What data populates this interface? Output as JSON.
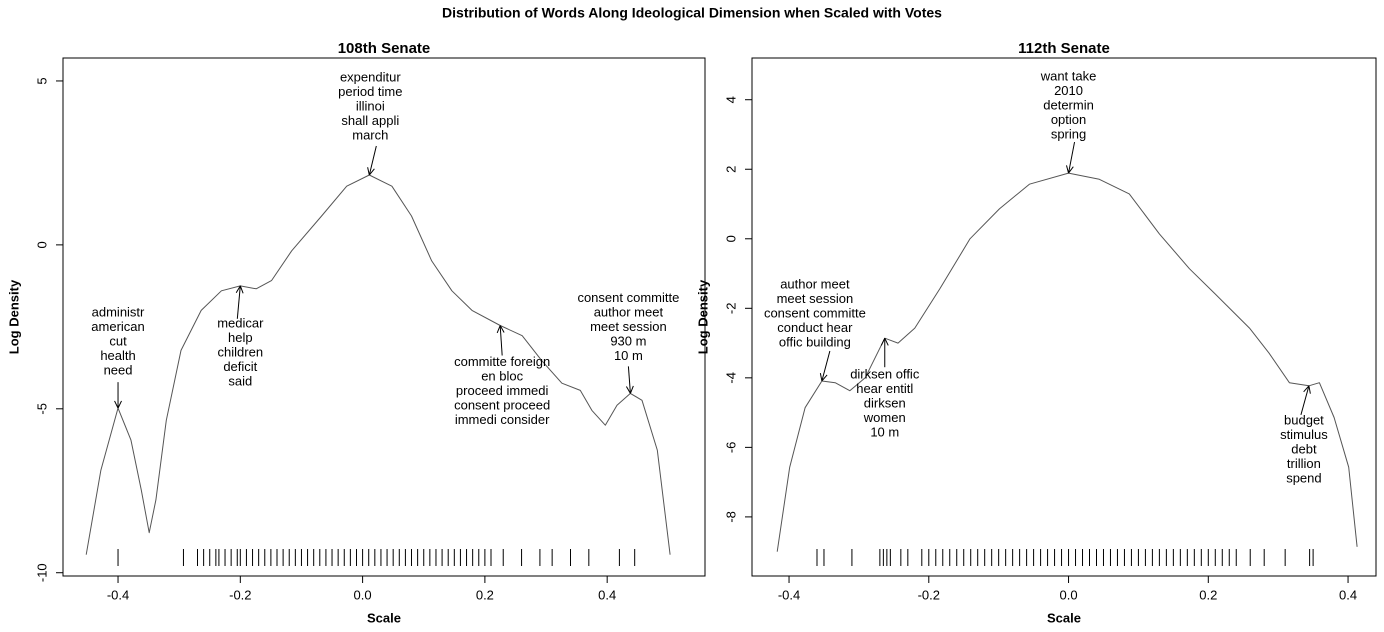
{
  "title": "Distribution of Words Along Ideological Dimension when Scaled with Votes",
  "chart_data": [
    {
      "type": "line",
      "title": "108th Senate",
      "xlabel": "Scale",
      "ylabel": "Log Density",
      "color": "#555555",
      "x": [
        -0.452,
        -0.428,
        -0.4,
        -0.379,
        -0.362,
        -0.349,
        -0.338,
        -0.321,
        -0.297,
        -0.264,
        -0.231,
        -0.2,
        -0.174,
        -0.149,
        -0.116,
        -0.067,
        -0.026,
        0.011,
        0.048,
        0.08,
        0.113,
        0.146,
        0.179,
        0.225,
        0.261,
        0.293,
        0.326,
        0.356,
        0.375,
        0.397,
        0.416,
        0.438,
        0.457,
        0.482,
        0.503
      ],
      "values": [
        -9.45,
        -6.87,
        -4.98,
        -5.95,
        -7.48,
        -8.78,
        -7.78,
        -5.35,
        -3.22,
        -2.0,
        -1.4,
        -1.25,
        -1.34,
        -1.09,
        -0.18,
        0.88,
        1.79,
        2.13,
        1.79,
        0.88,
        -0.49,
        -1.4,
        -2.0,
        -2.46,
        -2.77,
        -3.53,
        -4.22,
        -4.44,
        -5.05,
        -5.5,
        -4.89,
        -4.53,
        -4.74,
        -6.26,
        -9.45
      ],
      "xlim": [
        -0.49,
        0.56
      ],
      "ylim": [
        -10.1,
        5.7
      ],
      "xticks": [
        -0.4,
        -0.2,
        {
          "value": 0,
          "label": "0.0"
        },
        0.2,
        0.4
      ],
      "yticks": [
        5,
        0,
        -5,
        -10
      ],
      "rug": [
        -0.4,
        -0.293,
        -0.27,
        -0.26,
        -0.25,
        -0.24,
        -0.235,
        -0.225,
        -0.215,
        -0.205,
        -0.2,
        -0.19,
        -0.18,
        -0.17,
        -0.16,
        -0.15,
        -0.14,
        -0.13,
        -0.12,
        -0.11,
        -0.1,
        -0.09,
        -0.08,
        -0.07,
        -0.06,
        -0.05,
        -0.04,
        -0.03,
        -0.02,
        -0.01,
        0,
        0.01,
        0.02,
        0.03,
        0.04,
        0.05,
        0.06,
        0.07,
        0.08,
        0.09,
        0.1,
        0.11,
        0.12,
        0.13,
        0.14,
        0.15,
        0.16,
        0.17,
        0.18,
        0.19,
        0.2,
        0.21,
        0.23,
        0.26,
        0.29,
        0.31,
        0.34,
        0.37,
        0.42,
        0.445
      ],
      "annotations": [
        {
          "x": -0.4,
          "y": -4.98,
          "text": [
            "administr",
            "american",
            "cut",
            "health",
            "need"
          ]
        },
        {
          "x": -0.2,
          "y": -1.25,
          "text": [
            "medicar",
            "help",
            "children",
            "deficit",
            "said"
          ]
        },
        {
          "x": 0.011,
          "y": 2.13,
          "text": [
            "expenditur",
            "period time",
            "illinoi",
            "shall appli",
            "march"
          ]
        },
        {
          "x": 0.225,
          "y": -2.46,
          "text": [
            "committe foreign",
            "en bloc",
            "proceed immedi",
            "consent proceed",
            "immedi consider"
          ]
        },
        {
          "x": 0.438,
          "y": -4.53,
          "text": [
            "consent committe",
            "author meet",
            "meet session",
            "930 m",
            "10 m"
          ]
        }
      ]
    },
    {
      "type": "line",
      "title": "112th Senate",
      "xlabel": "Scale",
      "ylabel": "Log Density",
      "color": "#555555",
      "x": [
        -0.417,
        -0.399,
        -0.377,
        -0.353,
        -0.334,
        -0.313,
        -0.291,
        -0.263,
        -0.244,
        -0.22,
        -0.184,
        -0.141,
        -0.099,
        -0.056,
        0.0,
        0.044,
        0.087,
        0.13,
        0.173,
        0.209,
        0.259,
        0.287,
        0.316,
        0.344,
        0.359,
        0.38,
        0.401,
        0.413
      ],
      "values": [
        -9.0,
        -6.57,
        -4.86,
        -4.09,
        -4.14,
        -4.37,
        -4.0,
        -2.86,
        -3.0,
        -2.57,
        -1.43,
        0.0,
        0.86,
        1.57,
        1.89,
        1.71,
        1.29,
        0.14,
        -0.86,
        -1.57,
        -2.57,
        -3.29,
        -4.14,
        -4.23,
        -4.14,
        -5.14,
        -6.57,
        -8.86
      ],
      "xlim": [
        -0.453,
        0.44
      ],
      "ylim": [
        -9.7,
        5.2
      ],
      "xticks": [
        -0.4,
        -0.2,
        {
          "value": 0,
          "label": "0.0"
        },
        0.2,
        0.4
      ],
      "yticks": [
        4,
        2,
        0,
        -2,
        -4,
        -6,
        -8
      ],
      "rug": [
        -0.36,
        -0.35,
        -0.31,
        -0.27,
        -0.265,
        -0.26,
        -0.255,
        -0.24,
        -0.23,
        -0.21,
        -0.2,
        -0.19,
        -0.18,
        -0.17,
        -0.16,
        -0.15,
        -0.14,
        -0.13,
        -0.12,
        -0.11,
        -0.1,
        -0.09,
        -0.08,
        -0.07,
        -0.06,
        -0.05,
        -0.04,
        -0.03,
        -0.02,
        -0.01,
        0,
        0.01,
        0.02,
        0.03,
        0.04,
        0.05,
        0.06,
        0.07,
        0.08,
        0.09,
        0.1,
        0.11,
        0.12,
        0.13,
        0.14,
        0.15,
        0.16,
        0.17,
        0.18,
        0.19,
        0.2,
        0.21,
        0.22,
        0.23,
        0.24,
        0.26,
        0.28,
        0.31,
        0.345,
        0.35
      ],
      "annotations": [
        {
          "x": -0.353,
          "y": -4.09,
          "text": [
            "author meet",
            "meet session",
            "consent committe",
            "conduct hear",
            "offic building"
          ]
        },
        {
          "x": -0.263,
          "y": -2.86,
          "text": [
            "dirksen offic",
            "hear entitl",
            "dirksen",
            "women",
            "10 m"
          ]
        },
        {
          "x": 0.0,
          "y": 1.89,
          "text": [
            "want take",
            "2010",
            "determin",
            "option",
            "spring"
          ]
        },
        {
          "x": 0.344,
          "y": -4.23,
          "text": [
            "budget",
            "stimulus",
            "debt",
            "trillion",
            "spend"
          ]
        }
      ]
    }
  ]
}
